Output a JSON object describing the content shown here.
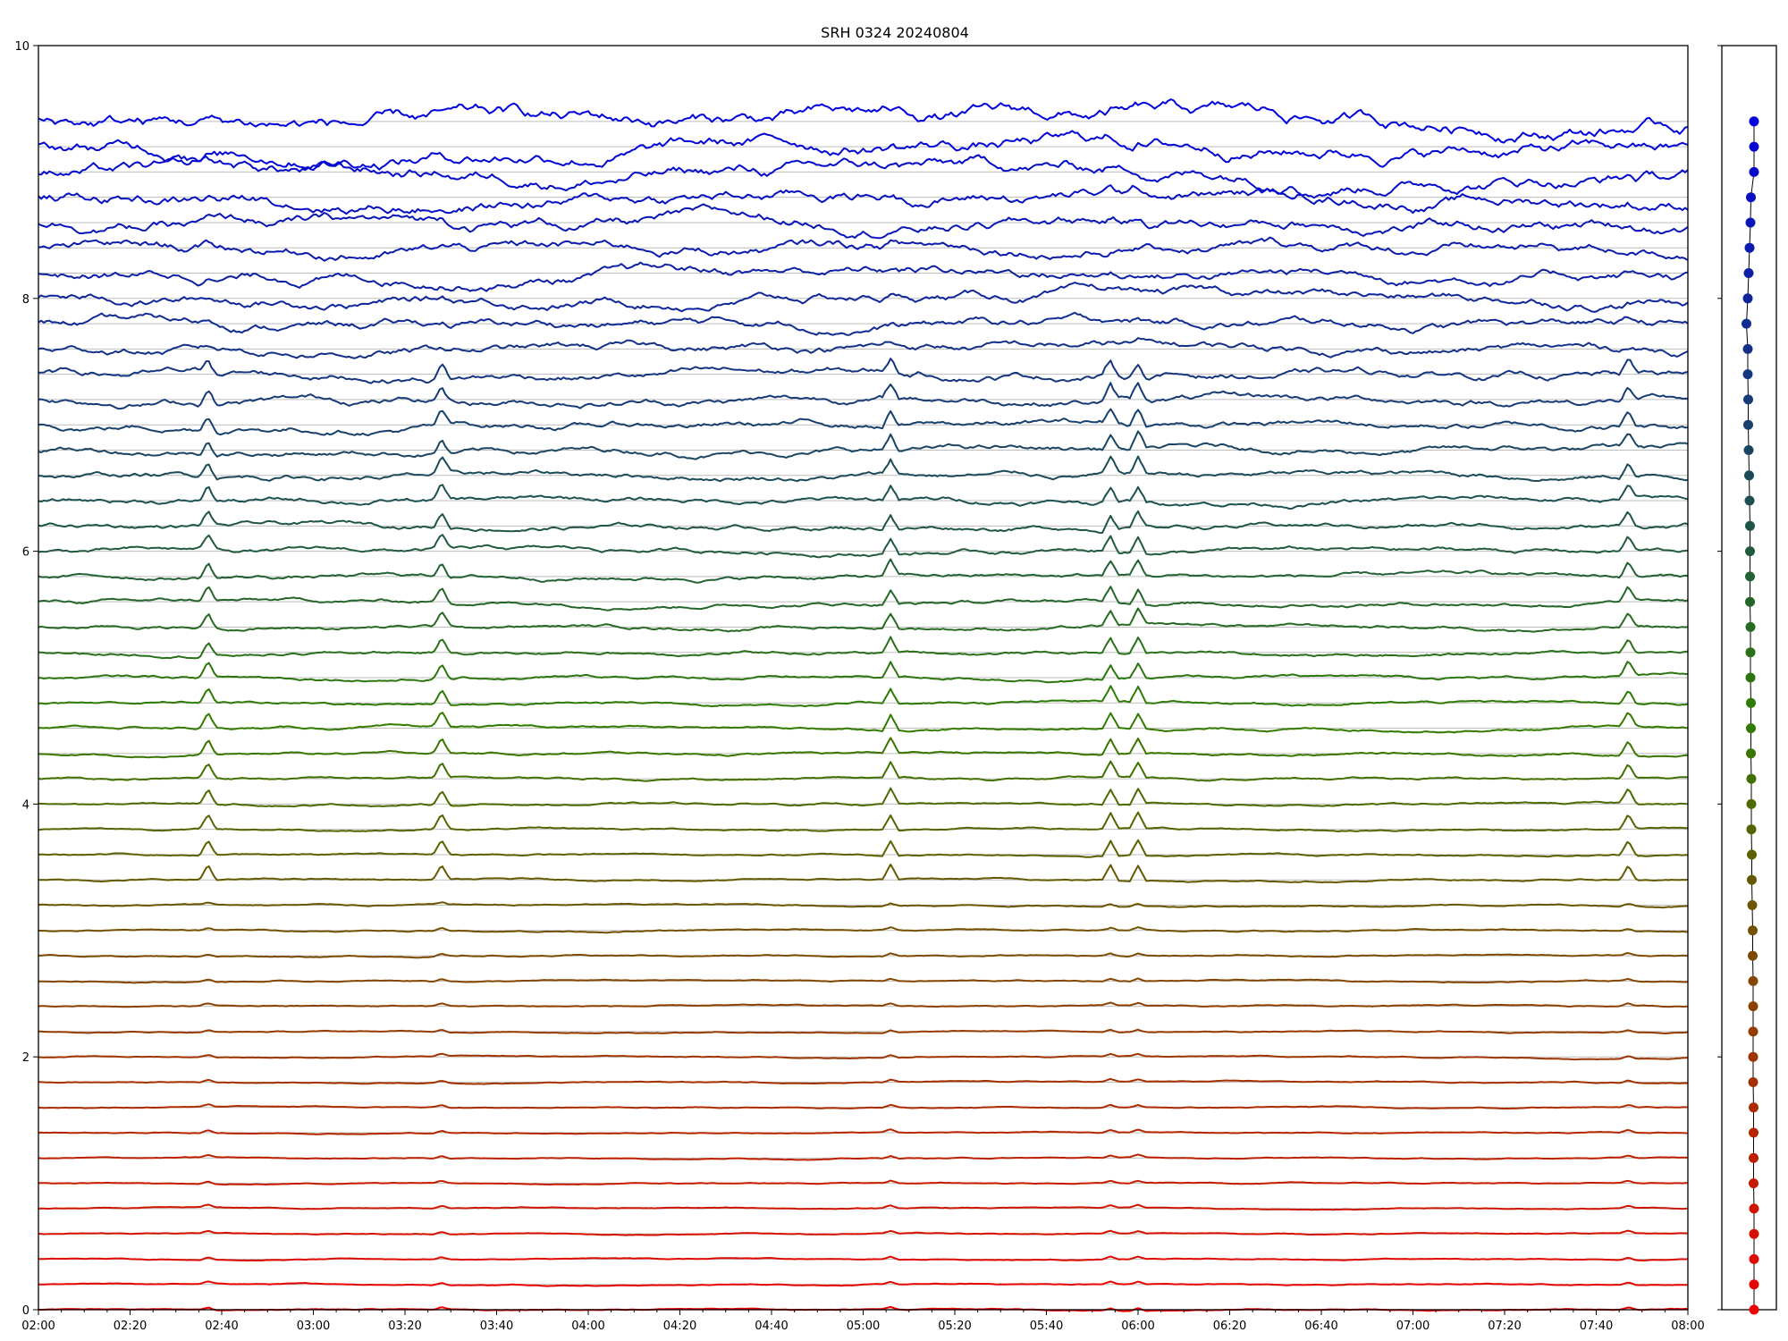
{
  "chart_data": [
    {
      "type": "line",
      "title": "SRH 0324 20240804",
      "xlabel": "",
      "ylabel": "",
      "x_tick_labels": [
        "02:00",
        "02:20",
        "02:40",
        "03:00",
        "03:20",
        "03:40",
        "04:00",
        "04:20",
        "04:40",
        "05:00",
        "05:20",
        "05:40",
        "06:00",
        "06:20",
        "06:40",
        "07:00",
        "07:20",
        "07:40",
        "08:00"
      ],
      "xlim_hours": [
        2.0,
        8.0
      ],
      "y_tick_labels": [
        "0",
        "2",
        "4",
        "6",
        "8",
        "10"
      ],
      "ylim": [
        0,
        10
      ],
      "grid": "horizontal at each trace baseline",
      "legend": "none",
      "num_traces": 48,
      "trace_spacing": 0.2,
      "color_start": "#ee0000",
      "color_mid": "#2e7d00",
      "color_end": "#0000dd",
      "trace_baselines_first": [
        0.0,
        0.2,
        0.4,
        0.6,
        0.8,
        1.0
      ],
      "trace_baselines_last": [
        9.0,
        9.2,
        9.4
      ],
      "common_spike_times": [
        "02:37",
        "03:28",
        "05:06",
        "05:54",
        "06:00",
        "07:47"
      ]
    },
    {
      "type": "scatter",
      "name": "side-panel",
      "ylim": [
        0,
        10
      ],
      "point_values": [
        0.0,
        0.2,
        0.4,
        0.6,
        0.8,
        1.0,
        1.2,
        1.4,
        1.6,
        1.8,
        2.0,
        2.2,
        2.4,
        2.6,
        2.8,
        3.0,
        3.2,
        3.4,
        3.6,
        3.8,
        4.0,
        4.2,
        4.4,
        4.6,
        4.8,
        5.0,
        5.2,
        5.4,
        5.6,
        5.8,
        6.0,
        6.2,
        6.4,
        6.6,
        6.8,
        7.0,
        7.2,
        7.4,
        7.6,
        7.8,
        8.0,
        8.2,
        8.4,
        8.6,
        8.8,
        9.0,
        9.2,
        9.4
      ],
      "point_offsets": [
        0.05,
        0.05,
        0.05,
        0.05,
        0.05,
        0.04,
        0.04,
        0.04,
        0.04,
        0.03,
        0.03,
        0.03,
        0.03,
        0.03,
        0.02,
        0.02,
        0.01,
        0.0,
        0.0,
        -0.01,
        -0.01,
        -0.01,
        -0.02,
        -0.02,
        -0.02,
        -0.03,
        -0.03,
        -0.03,
        -0.04,
        -0.04,
        -0.04,
        -0.04,
        -0.05,
        -0.06,
        -0.07,
        -0.08,
        -0.08,
        -0.09,
        -0.09,
        -0.12,
        -0.09,
        -0.07,
        -0.05,
        -0.03,
        -0.02,
        0.05,
        0.05,
        0.05
      ]
    }
  ]
}
